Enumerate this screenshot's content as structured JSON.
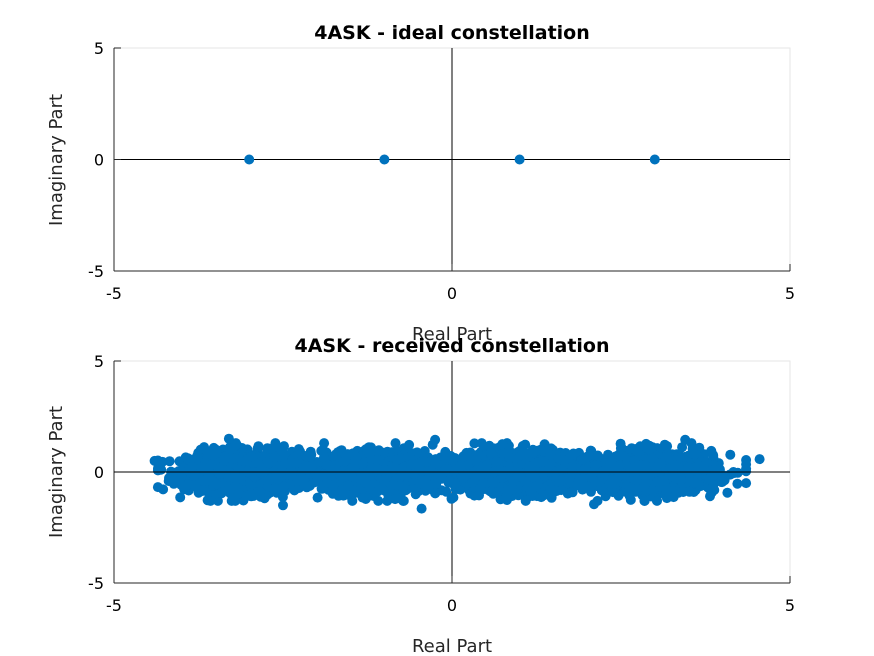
{
  "chart_data": [
    {
      "type": "scatter",
      "title": "4ASK - ideal constellation",
      "xlabel": "Real Part",
      "ylabel": "Imaginary Part",
      "xlim": [
        -5,
        5
      ],
      "ylim": [
        -5,
        5
      ],
      "xticks": [
        "-5",
        "0",
        "5"
      ],
      "yticks": [
        "5",
        "0",
        "-5"
      ],
      "color": "#0072BD",
      "points": [
        {
          "x": -3,
          "y": 0
        },
        {
          "x": -1,
          "y": 0
        },
        {
          "x": 1,
          "y": 0
        },
        {
          "x": 3,
          "y": 0
        }
      ]
    },
    {
      "type": "scatter",
      "title": "4ASK - received constellation",
      "xlabel": "Real Part",
      "ylabel": "Imaginary Part",
      "xlim": [
        -5,
        5
      ],
      "ylim": [
        -5,
        5
      ],
      "xticks": [
        "-5",
        "0",
        "5"
      ],
      "yticks": [
        "5",
        "0",
        "-5"
      ],
      "color": "#0072BD",
      "noise": {
        "symbols": [
          -3,
          -1,
          1,
          3
        ],
        "real_std": 0.45,
        "imag_std": 0.45,
        "samples_per_symbol": 1400
      },
      "points": [
        {
          "x": 4.55,
          "y": 0.58
        },
        {
          "x": -4.35,
          "y": -0.68
        },
        {
          "x": -0.45,
          "y": -1.65
        },
        {
          "x": 2.1,
          "y": -1.45
        },
        {
          "x": -3.3,
          "y": 1.5
        },
        {
          "x": -0.25,
          "y": 1.45
        },
        {
          "x": 3.45,
          "y": 1.45
        },
        {
          "x": -4.4,
          "y": 0.5
        },
        {
          "x": 4.35,
          "y": 0.35
        },
        {
          "x": 4.35,
          "y": -0.5
        },
        {
          "x": -2.5,
          "y": -1.5
        }
      ]
    }
  ]
}
